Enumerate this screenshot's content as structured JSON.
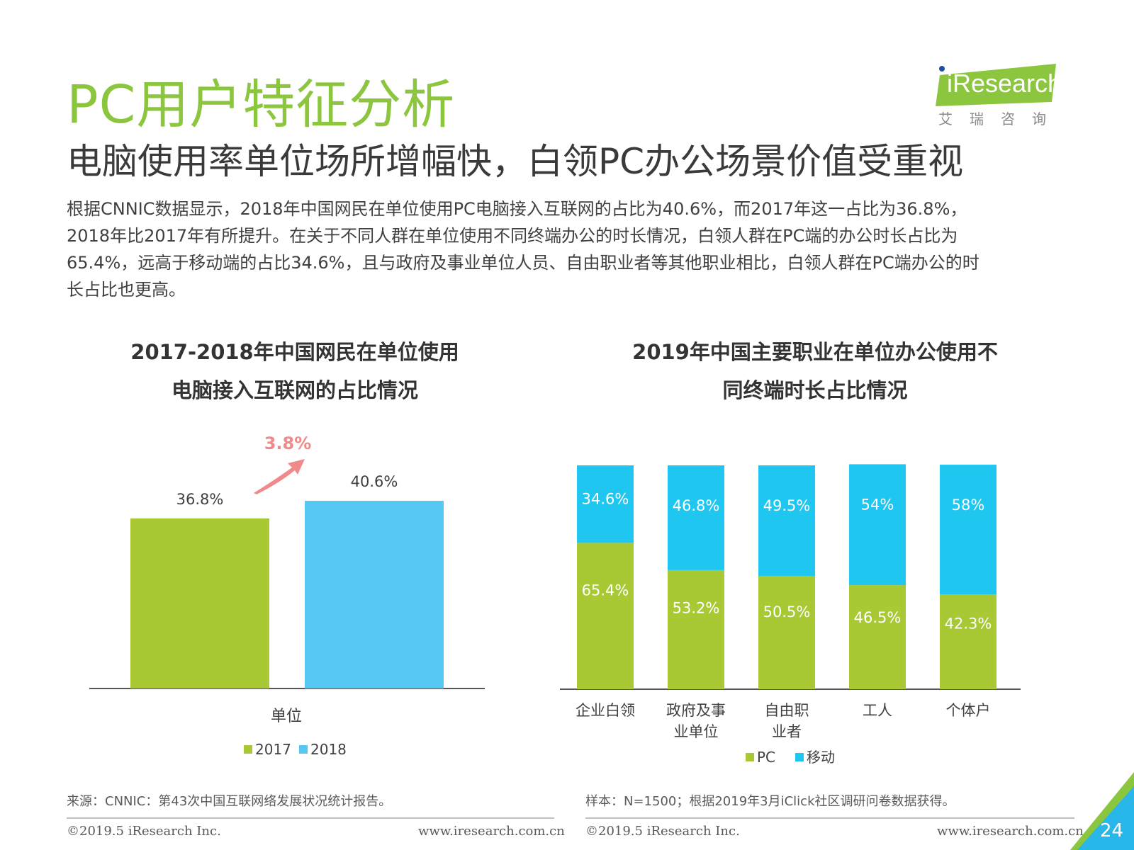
{
  "header": {
    "title": "PC用户特征分析",
    "subtitle": "电脑使用率单位场所增幅快，白领PC办公场景价值受重视",
    "intro_lines": [
      "根据CNNIC数据显示，2018年中国网民在单位使用PC电脑接入互联网的占比为40.6%，而2017年这一占比为36.8%，",
      "2018年比2017年有所提升。在关于不同人群在单位使用不同终端办公的时长情况，白领人群在PC端的办公时长占比为",
      "65.4%，远高于移动端的占比34.6%，且与政府及事业单位人员、自由职业者等其他职业相比，白领人群在PC端办公的时",
      "长占比也更高。"
    ]
  },
  "logo": {
    "word": "iResearch",
    "sub": "艾瑞咨询",
    "color": "#8cc63f"
  },
  "chart_data": [
    {
      "type": "bar",
      "title_lines": [
        "2017-2018年中国网民在单位使用",
        "电脑接入互联网的占比情况"
      ],
      "categories": [
        "单位"
      ],
      "series": [
        {
          "name": "2017",
          "values": [
            36.8
          ],
          "labels": [
            "36.8%"
          ],
          "color": "#a8c934"
        },
        {
          "name": "2018",
          "values": [
            40.6
          ],
          "labels": [
            "40.6%"
          ],
          "color": "#56c6f2"
        }
      ],
      "annotation": {
        "text": "3.8%",
        "color": "#f08a8a"
      },
      "legend": "bottom",
      "grid": false
    },
    {
      "type": "bar",
      "stacked": true,
      "percent": true,
      "title_lines": [
        "2019年中国主要职业在单位办公使用不",
        "同终端时长占比情况"
      ],
      "categories": [
        [
          "企业白领"
        ],
        [
          "政府及事",
          "业单位"
        ],
        [
          "自由职",
          "业者"
        ],
        [
          "工人"
        ],
        [
          "个体户"
        ]
      ],
      "series": [
        {
          "name": "PC",
          "values": [
            65.4,
            53.2,
            50.5,
            46.5,
            42.3
          ],
          "labels": [
            "65.4%",
            "53.2%",
            "50.5%",
            "46.5%",
            "42.3%"
          ],
          "color": "#a8c934"
        },
        {
          "name": "移动",
          "values": [
            34.6,
            46.8,
            49.5,
            54,
            58
          ],
          "labels": [
            "34.6%",
            "46.8%",
            "49.5%",
            "54%",
            "58%"
          ],
          "color": "#1fc6f0"
        }
      ],
      "ylim": [
        0,
        100
      ],
      "legend": "bottom",
      "grid": false
    }
  ],
  "sources": {
    "left": "来源：CNNIC：第43次中国互联网络发展状况统计报告。",
    "right": "样本：N=1500；根据2019年3月iClick社区调研问卷数据获得。"
  },
  "footer": {
    "copyright": "©2019.5 iResearch Inc.",
    "website": "www.iresearch.com.cn",
    "page": "24"
  }
}
